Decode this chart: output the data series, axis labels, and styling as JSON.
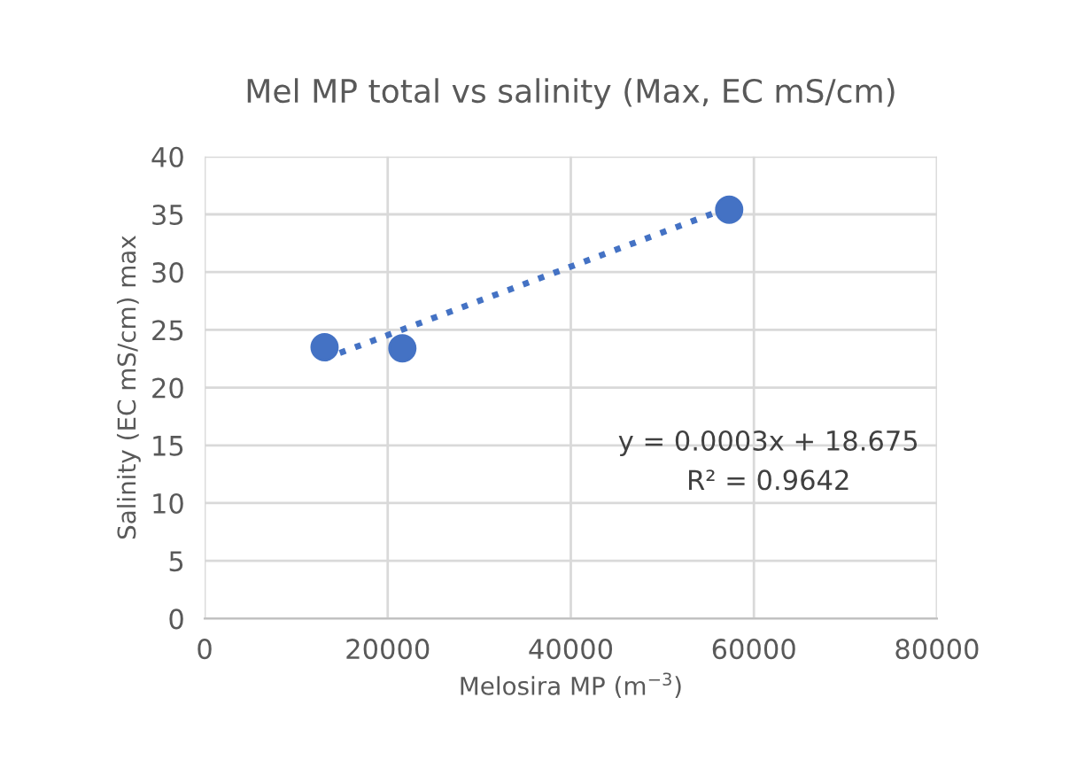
{
  "chart_data": {
    "type": "scatter",
    "title": "Mel MP total vs salinity (Max, EC mS/cm)",
    "xlabel": "Melosira MP (m$^{−3}$)",
    "ylabel": "Salinity (EC mS/cm) max",
    "series": [
      {
        "color": "#4472c4",
        "marker": "circle",
        "x": [
          13100,
          21600,
          57300
        ],
        "values": [
          23.5,
          23.4,
          35.4
        ]
      },
      {
        "type": "line",
        "color": "#4472c4",
        "line_style": "dotted",
        "marker": "none",
        "x": [
          13100,
          57300
        ],
        "values": [
          22.5,
          35.6
        ]
      }
    ],
    "annotations": [
      "y = 0.0003x + 18.675",
      "R² = 0.9642"
    ],
    "xlim": [
      0,
      80000
    ],
    "xticks": [
      0,
      20000,
      40000,
      60000,
      80000
    ],
    "ylim": [
      0,
      40
    ],
    "yticks": [
      0,
      5,
      10,
      15,
      20,
      25,
      30,
      35,
      40
    ],
    "grid": true,
    "legend": false
  }
}
